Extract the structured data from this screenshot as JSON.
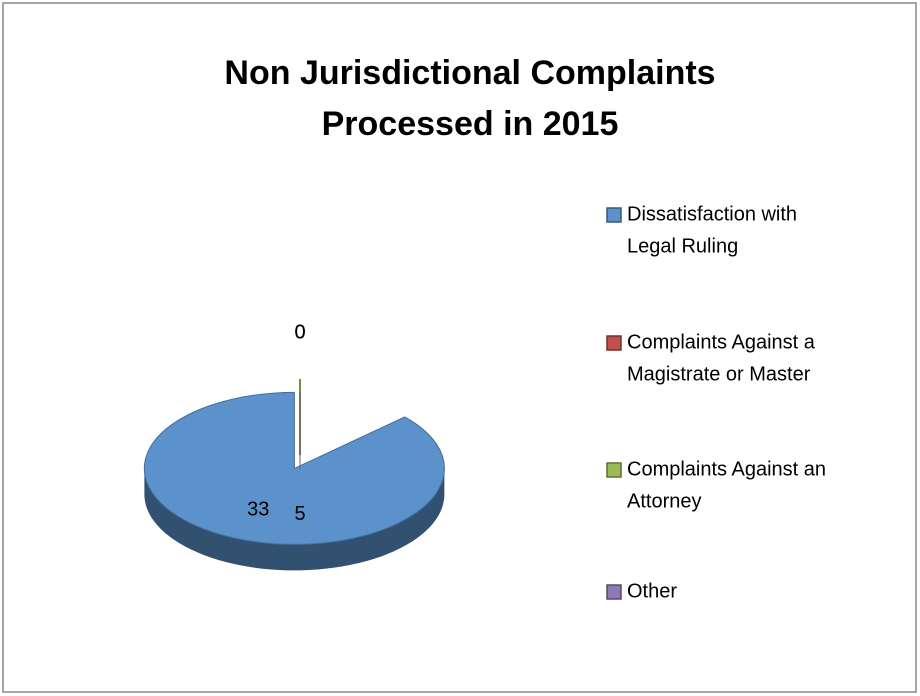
{
  "chart_data": {
    "type": "pie3d",
    "title": [
      "Non Jurisdictional Complaints",
      "Processed in 2015"
    ],
    "categories": [
      [
        "Dissatisfaction with",
        "Legal Ruling"
      ],
      [
        "Complaints Against a",
        "Magistrate or Master"
      ],
      [
        "Complaints Against an",
        "Attorney"
      ],
      [
        "Other"
      ]
    ],
    "values": [
      33,
      0,
      0,
      5
    ],
    "colors": [
      "#5b92cc",
      "#c0504d",
      "#9bbb59",
      "#8f78b3"
    ],
    "legend": "right"
  }
}
